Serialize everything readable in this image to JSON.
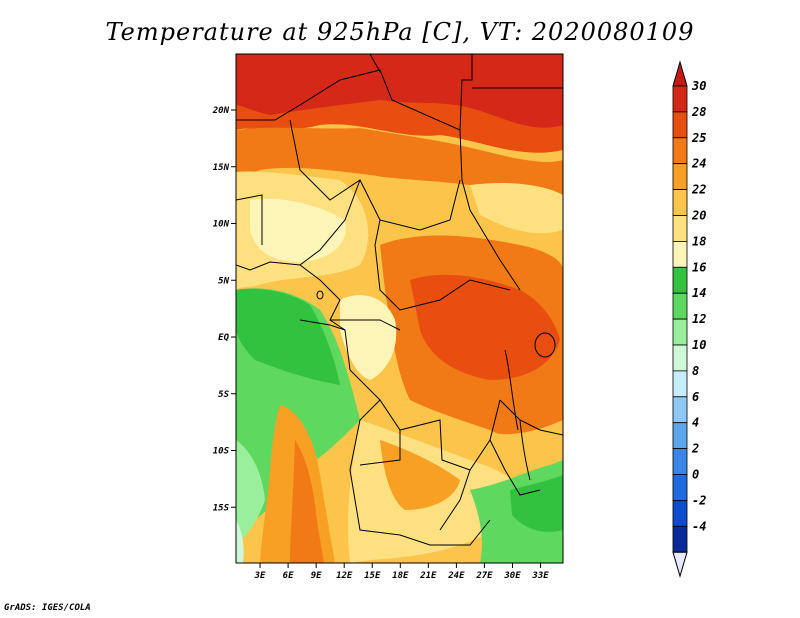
{
  "title": "Temperature at 925hPa [C], VT: 2020080109",
  "credit": "GrADS: IGES/COLA",
  "map": {
    "lat_labels": [
      "20N",
      "15N",
      "10N",
      "5N",
      "EQ",
      "5S",
      "10S",
      "15S"
    ],
    "lat_values": [
      20,
      15,
      10,
      5,
      0,
      -5,
      -10,
      -15
    ],
    "lon_labels": [
      "3E",
      "6E",
      "9E",
      "12E",
      "15E",
      "18E",
      "21E",
      "24E",
      "27E",
      "30E",
      "33E"
    ],
    "lon_values": [
      3,
      6,
      9,
      12,
      15,
      18,
      21,
      24,
      27,
      30,
      33
    ]
  },
  "colorbar": {
    "labels": [
      "30",
      "28",
      "25",
      "24",
      "22",
      "20",
      "18",
      "16",
      "14",
      "12",
      "10",
      "8",
      "6",
      "4",
      "2",
      "0",
      "-2",
      "-4"
    ],
    "colors": [
      "#d42818",
      "#e84e10",
      "#f27a16",
      "#f7a024",
      "#fbc44a",
      "#fde080",
      "#fdf5b8",
      "#33c240",
      "#5fd85f",
      "#9af09a",
      "#cff8d8",
      "#c8ecff",
      "#8fc8f4",
      "#5ca7ec",
      "#3a86e6",
      "#1e6ae0",
      "#0c4ccc",
      "#0a2a98"
    ],
    "top_color": "#c81814",
    "bottom_color": "#e8e8ff"
  }
}
